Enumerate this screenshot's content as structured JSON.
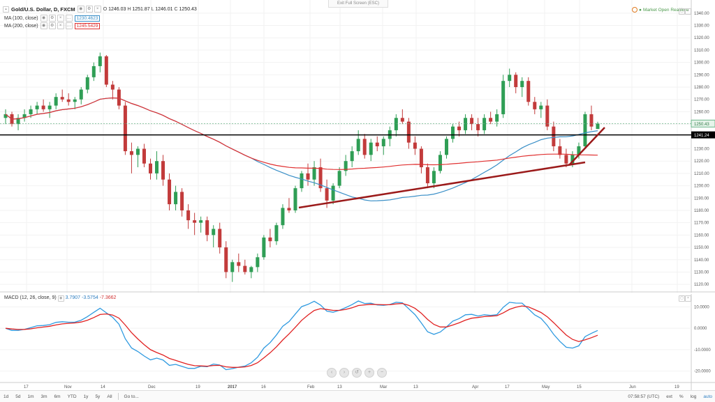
{
  "header": {
    "symbol_title": "Gold/U.S. Dollar, D, FXCM",
    "ohlc": {
      "o_label": "O",
      "o": "1246.03",
      "h_label": "H",
      "h": "1251.87",
      "l_label": "L",
      "l": "1246.01",
      "c_label": "C",
      "c": "1250.43"
    },
    "ma100_label": "MA (100, close)",
    "ma100_value": "1230.4623",
    "ma200_label": "MA (200, close)",
    "ma200_value": "1245.5429",
    "exit_fullscreen": "Exit Full Screen (ESC)",
    "market_status": "Market Open Realtime"
  },
  "price_axis": {
    "ticks": [
      "1340.00",
      "1330.00",
      "1320.00",
      "1310.00",
      "1300.00",
      "1290.00",
      "1280.00",
      "1270.00",
      "1260.00",
      "1250.00",
      "1240.00",
      "1230.00",
      "1220.00",
      "1210.00",
      "1200.00",
      "1190.00",
      "1180.00",
      "1170.00",
      "1160.00",
      "1150.00",
      "1140.00",
      "1130.00",
      "1120.00"
    ],
    "last_price_label": "1250.43",
    "line_price_label": "1241.24"
  },
  "macd": {
    "label": "MACD (12, 26, close, 9)",
    "v1": "3.7907",
    "v2": "-3.5754",
    "v3": "-7.3662",
    "ticks": [
      "10.0000",
      "0.0000",
      "-10.0000",
      "-20.0000"
    ]
  },
  "time_axis": {
    "labels": [
      "17",
      "Nov",
      "14",
      "Dec",
      "19",
      "2017",
      "16",
      "Feb",
      "13",
      "Mar",
      "13",
      "Apr",
      "17",
      "May",
      "15",
      "Jun",
      "19"
    ],
    "clock": "07:58:57 (UTC)"
  },
  "bottom_bar": {
    "ranges": [
      "1d",
      "5d",
      "1m",
      "3m",
      "6m",
      "YTD",
      "1y",
      "5y",
      "All",
      "Go to..."
    ],
    "right_buttons": [
      "ext",
      "%",
      "log",
      "auto"
    ]
  },
  "nav_controls": [
    "‹",
    "›",
    "↺",
    "+",
    "−"
  ],
  "colors": {
    "up": "#2f9e55",
    "down": "#c23b3b",
    "ma100": "#3a8fc7",
    "ma200": "#e03030",
    "trendline": "#9b1a1a",
    "hline": "#000000",
    "macd": "#2f9ae0",
    "signal": "#e02020"
  },
  "chart_data": {
    "type": "candlestick",
    "title": "Gold/U.S. Dollar, D, FXCM",
    "y_range": [
      1115,
      1345
    ],
    "candles_ohlc_sample_note": "",
    "candles": [
      [
        1255,
        1262,
        1250,
        1258
      ],
      [
        1258,
        1260,
        1248,
        1250
      ],
      [
        1250,
        1258,
        1245,
        1255
      ],
      [
        1255,
        1262,
        1252,
        1258
      ],
      [
        1258,
        1265,
        1255,
        1262
      ],
      [
        1262,
        1268,
        1258,
        1265
      ],
      [
        1265,
        1270,
        1260,
        1262
      ],
      [
        1262,
        1268,
        1255,
        1265
      ],
      [
        1265,
        1275,
        1262,
        1272
      ],
      [
        1272,
        1278,
        1268,
        1270
      ],
      [
        1270,
        1275,
        1265,
        1268
      ],
      [
        1268,
        1272,
        1262,
        1270
      ],
      [
        1270,
        1280,
        1266,
        1278
      ],
      [
        1278,
        1290,
        1275,
        1288
      ],
      [
        1288,
        1300,
        1285,
        1297
      ],
      [
        1297,
        1308,
        1292,
        1305
      ],
      [
        1305,
        1306,
        1280,
        1282
      ],
      [
        1282,
        1285,
        1270,
        1278
      ],
      [
        1278,
        1280,
        1262,
        1265
      ],
      [
        1265,
        1268,
        1225,
        1228
      ],
      [
        1228,
        1235,
        1210,
        1225
      ],
      [
        1225,
        1232,
        1215,
        1230
      ],
      [
        1230,
        1234,
        1215,
        1218
      ],
      [
        1218,
        1222,
        1205,
        1210
      ],
      [
        1210,
        1228,
        1205,
        1220
      ],
      [
        1220,
        1225,
        1200,
        1205
      ],
      [
        1205,
        1210,
        1180,
        1185
      ],
      [
        1185,
        1200,
        1180,
        1195
      ],
      [
        1195,
        1198,
        1175,
        1180
      ],
      [
        1180,
        1185,
        1165,
        1172
      ],
      [
        1172,
        1178,
        1160,
        1170
      ],
      [
        1170,
        1175,
        1162,
        1172
      ],
      [
        1172,
        1175,
        1155,
        1160
      ],
      [
        1160,
        1168,
        1150,
        1165
      ],
      [
        1165,
        1170,
        1145,
        1150
      ],
      [
        1150,
        1155,
        1125,
        1130
      ],
      [
        1130,
        1140,
        1122,
        1138
      ],
      [
        1138,
        1145,
        1130,
        1135
      ],
      [
        1135,
        1140,
        1128,
        1130
      ],
      [
        1130,
        1135,
        1125,
        1134
      ],
      [
        1134,
        1145,
        1130,
        1142
      ],
      [
        1142,
        1160,
        1140,
        1158
      ],
      [
        1158,
        1165,
        1150,
        1155
      ],
      [
        1155,
        1170,
        1152,
        1168
      ],
      [
        1168,
        1185,
        1165,
        1182
      ],
      [
        1182,
        1190,
        1178,
        1180
      ],
      [
        1180,
        1200,
        1178,
        1198
      ],
      [
        1198,
        1212,
        1195,
        1210
      ],
      [
        1210,
        1218,
        1200,
        1205
      ],
      [
        1205,
        1220,
        1200,
        1215
      ],
      [
        1215,
        1222,
        1195,
        1198
      ],
      [
        1198,
        1205,
        1182,
        1188
      ],
      [
        1188,
        1202,
        1185,
        1200
      ],
      [
        1200,
        1215,
        1198,
        1212
      ],
      [
        1212,
        1225,
        1208,
        1220
      ],
      [
        1220,
        1232,
        1215,
        1228
      ],
      [
        1228,
        1245,
        1225,
        1238
      ],
      [
        1238,
        1242,
        1222,
        1225
      ],
      [
        1225,
        1238,
        1220,
        1235
      ],
      [
        1235,
        1240,
        1228,
        1232
      ],
      [
        1232,
        1240,
        1225,
        1238
      ],
      [
        1238,
        1248,
        1232,
        1245
      ],
      [
        1245,
        1258,
        1240,
        1255
      ],
      [
        1255,
        1262,
        1250,
        1252
      ],
      [
        1252,
        1255,
        1230,
        1235
      ],
      [
        1235,
        1240,
        1225,
        1230
      ],
      [
        1230,
        1232,
        1210,
        1215
      ],
      [
        1215,
        1218,
        1198,
        1202
      ],
      [
        1202,
        1215,
        1198,
        1212
      ],
      [
        1212,
        1228,
        1210,
        1225
      ],
      [
        1225,
        1240,
        1222,
        1238
      ],
      [
        1238,
        1250,
        1235,
        1248
      ],
      [
        1248,
        1252,
        1240,
        1245
      ],
      [
        1245,
        1258,
        1242,
        1255
      ],
      [
        1255,
        1258,
        1245,
        1250
      ],
      [
        1250,
        1255,
        1240,
        1245
      ],
      [
        1245,
        1258,
        1242,
        1255
      ],
      [
        1255,
        1260,
        1250,
        1252
      ],
      [
        1252,
        1262,
        1248,
        1258
      ],
      [
        1258,
        1290,
        1255,
        1285
      ],
      [
        1285,
        1295,
        1280,
        1290
      ],
      [
        1290,
        1292,
        1275,
        1280
      ],
      [
        1280,
        1288,
        1272,
        1285
      ],
      [
        1285,
        1288,
        1265,
        1268
      ],
      [
        1268,
        1272,
        1258,
        1262
      ],
      [
        1262,
        1268,
        1255,
        1265
      ],
      [
        1265,
        1270,
        1245,
        1248
      ],
      [
        1248,
        1252,
        1228,
        1232
      ],
      [
        1232,
        1238,
        1222,
        1225
      ],
      [
        1225,
        1230,
        1215,
        1218
      ],
      [
        1218,
        1228,
        1215,
        1225
      ],
      [
        1225,
        1235,
        1222,
        1232
      ],
      [
        1232,
        1260,
        1230,
        1258
      ],
      [
        1258,
        1265,
        1245,
        1248
      ],
      [
        1246.03,
        1251.87,
        1246.01,
        1250.43
      ]
    ],
    "horizontal_line_price": 1241.24,
    "macd_range": [
      -25,
      16
    ]
  }
}
